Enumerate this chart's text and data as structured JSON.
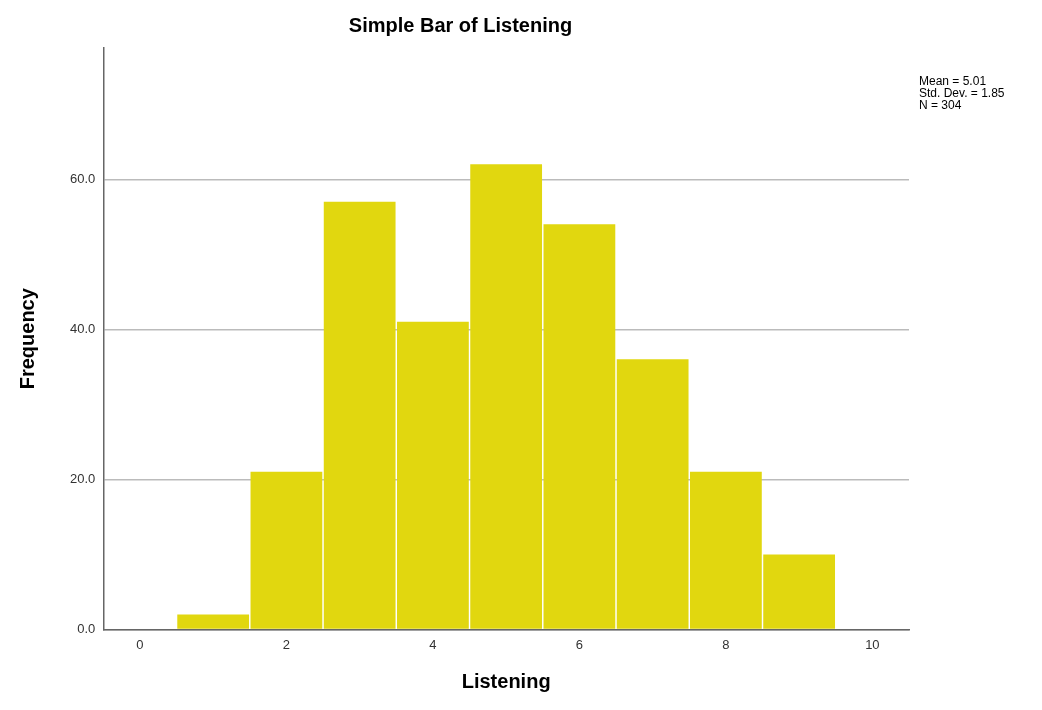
{
  "chart_data": {
    "type": "histogram",
    "title": "Simple Bar of Listening",
    "xlabel": "Listening",
    "ylabel": "Frequency",
    "bins": [
      0.5,
      1.5,
      2.5,
      3.5,
      4.5,
      5.5,
      6.5,
      7.5,
      8.5,
      9.5
    ],
    "values": [
      2,
      21,
      57,
      41,
      62,
      54,
      36,
      21,
      10
    ],
    "color": "#e1d70f",
    "xlim": [
      -0.5,
      10.5
    ],
    "xticks": [
      0,
      2,
      4,
      6,
      8,
      10
    ],
    "ylim": [
      0,
      77.5
    ],
    "yticks": [
      {
        "value": 0,
        "label": "0.0"
      },
      {
        "value": 20,
        "label": "20.0"
      },
      {
        "value": 40,
        "label": "40.0"
      },
      {
        "value": 60,
        "label": "60.0"
      }
    ],
    "grid": "y",
    "annotations": [
      "Mean = 5.01",
      "Std. Dev. = 1.85",
      "N = 304"
    ]
  }
}
